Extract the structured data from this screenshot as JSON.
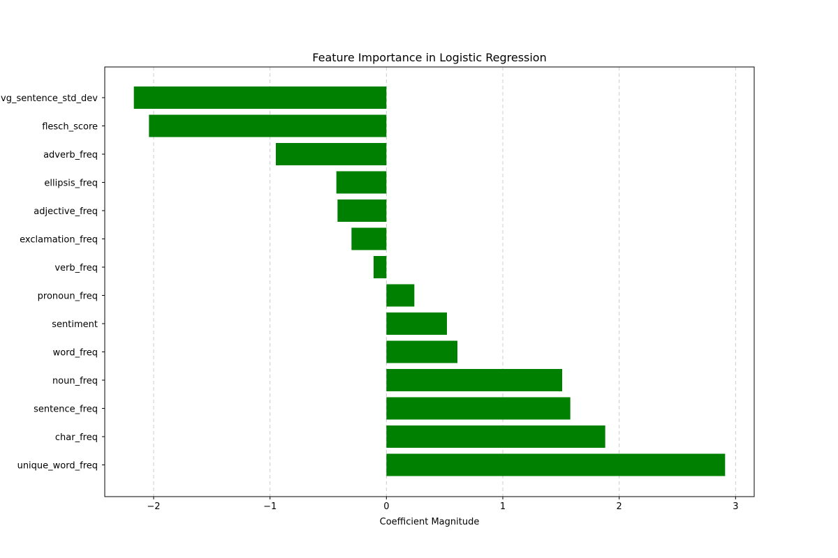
{
  "chart_data": {
    "type": "bar",
    "orientation": "horizontal",
    "title": "Feature Importance in Logistic Regression",
    "xlabel": "Coefficient Magnitude",
    "ylabel": "",
    "xlim": [
      -2.42,
      3.16
    ],
    "xticks": [
      -2,
      -1,
      0,
      1,
      2,
      3
    ],
    "xtick_labels": [
      "−2",
      "−1",
      "0",
      "1",
      "2",
      "3"
    ],
    "grid": "x-dashed",
    "bar_color": "#008000",
    "grid_color": "#cccccc",
    "categories": [
      "avg_sentence_std_dev",
      "flesch_score",
      "adverb_freq",
      "ellipsis_freq",
      "adjective_freq",
      "exclamation_freq",
      "verb_freq",
      "pronoun_freq",
      "sentiment",
      "word_freq",
      "noun_freq",
      "sentence_freq",
      "char_freq",
      "unique_word_freq"
    ],
    "values": [
      -2.17,
      -2.04,
      -0.95,
      -0.43,
      -0.42,
      -0.3,
      -0.11,
      0.24,
      0.52,
      0.61,
      1.51,
      1.58,
      1.88,
      2.91
    ]
  }
}
